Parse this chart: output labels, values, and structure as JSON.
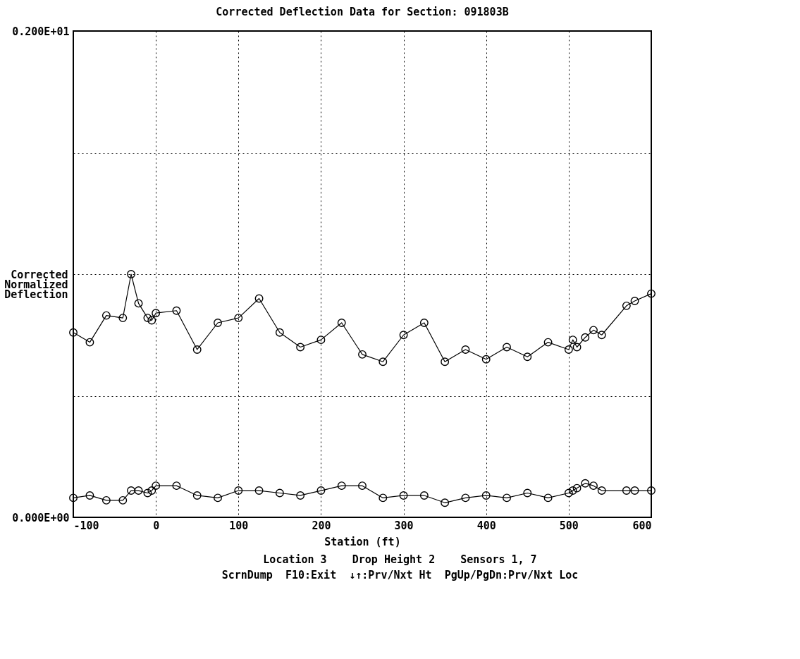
{
  "chart_data": {
    "type": "line",
    "title": "Corrected Deflection Data for Section: 091803B",
    "xlabel": "Station (ft)",
    "ylabel": "Corrected\nNormalized\nDeflection",
    "x": [
      -100,
      -80,
      -60,
      -40,
      -30,
      -21,
      -10,
      -5,
      0,
      25,
      50,
      75,
      100,
      125,
      150,
      175,
      200,
      225,
      250,
      275,
      300,
      325,
      350,
      375,
      400,
      425,
      450,
      475,
      500,
      505,
      510,
      520,
      530,
      540,
      570,
      580,
      600
    ],
    "series": [
      {
        "color": "#000000",
        "values": [
          0.76,
          0.72,
          0.83,
          0.82,
          1.0,
          0.88,
          0.82,
          0.81,
          0.84,
          0.85,
          0.69,
          0.8,
          0.82,
          0.9,
          0.76,
          0.7,
          0.73,
          0.8,
          0.67,
          0.64,
          0.75,
          0.8,
          0.64,
          0.69,
          0.65,
          0.7,
          0.66,
          0.72,
          0.69,
          0.73,
          0.7,
          0.74,
          0.77,
          0.75,
          0.87,
          0.89,
          0.92
        ]
      },
      {
        "color": "#000000",
        "values": [
          0.08,
          0.09,
          0.07,
          0.07,
          0.11,
          0.11,
          0.1,
          0.11,
          0.13,
          0.13,
          0.09,
          0.08,
          0.11,
          0.11,
          0.1,
          0.09,
          0.11,
          0.13,
          0.13,
          0.08,
          0.09,
          0.09,
          0.06,
          0.08,
          0.09,
          0.08,
          0.1,
          0.08,
          0.1,
          0.11,
          0.12,
          0.14,
          0.13,
          0.11,
          0.11,
          0.11,
          0.11
        ]
      }
    ],
    "xlim": [
      -100,
      600
    ],
    "xticks": [
      -100,
      0,
      100,
      200,
      300,
      400,
      500,
      600
    ],
    "ylim": [
      0,
      2
    ],
    "yticks": [
      {
        "value": 0,
        "label": "0.000E+00"
      },
      {
        "value": 0.5,
        "label": null
      },
      {
        "value": 1,
        "label": null
      },
      {
        "value": 1.5,
        "label": null
      },
      {
        "value": 2,
        "label": "0.200E+01"
      }
    ],
    "grid": true,
    "marker": "circle",
    "line_style": "solid",
    "annotations": [
      "Location 3    Drop Height 2    Sensors 1, 7",
      "ScrnDump  F10:Exit  ↓↑:Prv/Nxt Ht  PgUp/PgDn:Prv/Nxt Loc"
    ]
  }
}
